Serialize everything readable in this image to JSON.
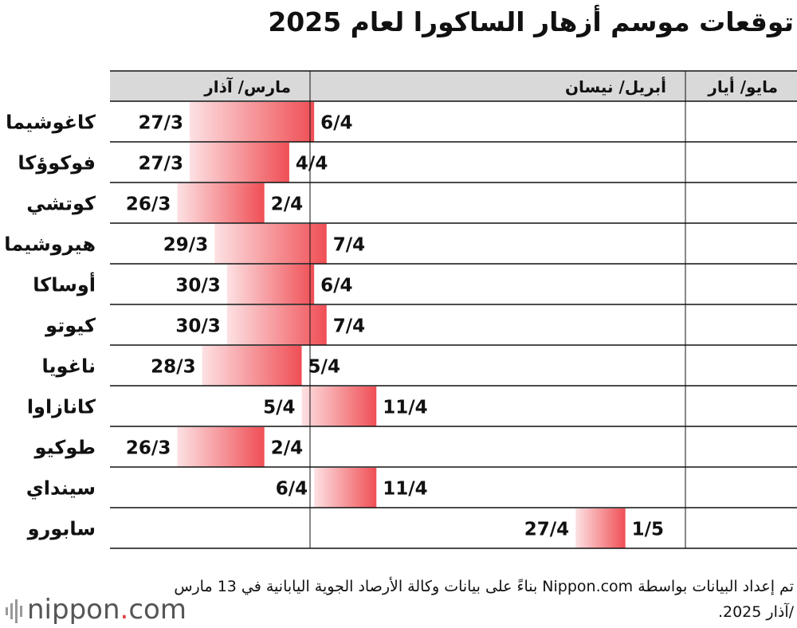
{
  "title": "توقعات موسم أزهار الساكورا لعام 2025",
  "note": "تم إعداد البيانات بواسطة Nippon.com بناءً على بيانات وكالة الأرصاد الجوية اليابانية في 13 مارس /آذار 2025.",
  "logo": {
    "name": "nippon",
    "dot": ".",
    "suffix": "com"
  },
  "colors": {
    "bar_start": "#fde1e3",
    "bar_end": "#ef4f55",
    "header_bg": "#d9d9d9"
  },
  "chart_data": {
    "type": "gantt",
    "title": "توقعات موسم أزهار الساكورا لعام 2025",
    "months": [
      {
        "label": "مارس/ آذار",
        "start_day": 20,
        "end_day": 31
      },
      {
        "label": "أبريل/ نيسان",
        "start_day": 32,
        "end_day": 61
      },
      {
        "label": "مايو/ أيار",
        "start_day": 62,
        "end_day": 66
      }
    ],
    "rows": [
      {
        "city": "كاغوشيما",
        "start": "27/3",
        "end": "6/4",
        "start_day": 27,
        "end_day": 37
      },
      {
        "city": "فوكوؤكا",
        "start": "27/3",
        "end": "4/4",
        "start_day": 27,
        "end_day": 35
      },
      {
        "city": "كوتشي",
        "start": "26/3",
        "end": "2/4",
        "start_day": 26,
        "end_day": 33
      },
      {
        "city": "هيروشيما",
        "start": "29/3",
        "end": "7/4",
        "start_day": 29,
        "end_day": 38
      },
      {
        "city": "أوساكا",
        "start": "30/3",
        "end": "6/4",
        "start_day": 30,
        "end_day": 37
      },
      {
        "city": "كيوتو",
        "start": "30/3",
        "end": "7/4",
        "start_day": 30,
        "end_day": 38
      },
      {
        "city": "ناغويا",
        "start": "28/3",
        "end": "5/4",
        "start_day": 28,
        "end_day": 36
      },
      {
        "city": "كانازاوا",
        "start": "5/4",
        "end": "11/4",
        "start_day": 36,
        "end_day": 42
      },
      {
        "city": "طوكيو",
        "start": "26/3",
        "end": "2/4",
        "start_day": 26,
        "end_day": 33
      },
      {
        "city": "سينداي",
        "start": "6/4",
        "end": "11/4",
        "start_day": 37,
        "end_day": 42
      },
      {
        "city": "سابورو",
        "start": "27/4",
        "end": "1/5",
        "start_day": 58,
        "end_day": 62
      }
    ]
  }
}
